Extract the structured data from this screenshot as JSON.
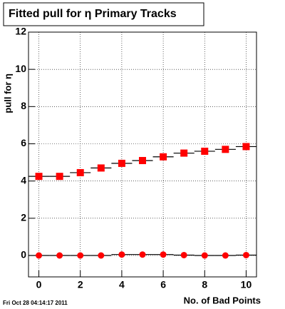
{
  "chart_data": {
    "type": "scatter",
    "title": "Fitted pull for  η Primary Tracks",
    "y_label": "pull for η",
    "x_label": "No. of Bad Points",
    "footer": "Fri Oct 28 04:14:17 2011",
    "x": [
      0,
      1,
      2,
      3,
      4,
      5,
      6,
      7,
      8,
      9,
      10
    ],
    "series": [
      {
        "color": "#ff0000",
        "marker": "square",
        "values": [
          4.25,
          4.25,
          4.45,
          4.7,
          4.95,
          5.1,
          5.3,
          5.5,
          5.6,
          5.7,
          5.85
        ]
      },
      {
        "color": "#ff0000",
        "marker": "circle",
        "values": [
          0,
          0,
          0,
          0,
          0.05,
          0.05,
          0.05,
          0.02,
          0,
          0,
          0.02
        ]
      }
    ],
    "xlim": [
      -0.5,
      10.5
    ],
    "xticks": [
      0,
      2,
      4,
      6,
      8,
      10
    ],
    "ylim": [
      -1.15,
      12
    ],
    "yticks": [
      0,
      2,
      4,
      6,
      8,
      10,
      12
    ],
    "grid": true
  }
}
